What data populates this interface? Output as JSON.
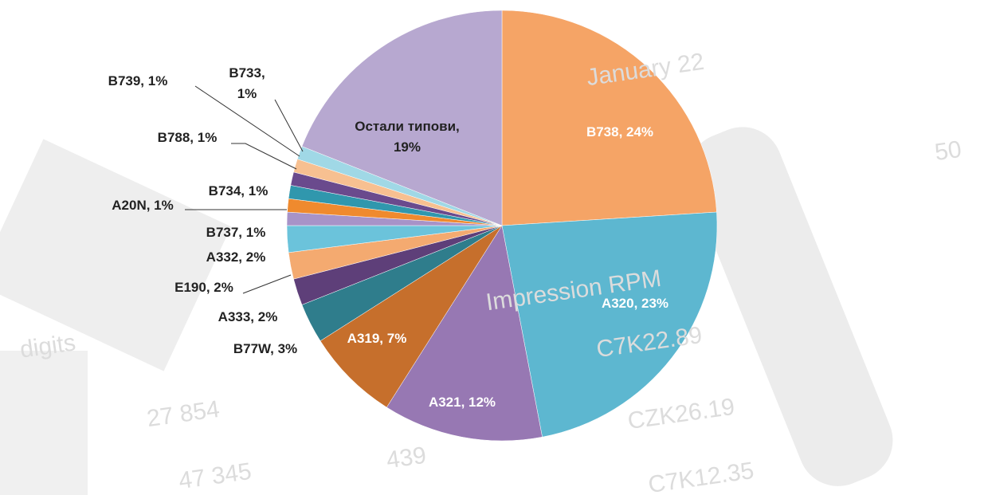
{
  "chart_data": {
    "type": "pie",
    "value_labels": [
      "B738, 24%",
      "A320, 23%",
      "A321, 12%",
      "A319, 7%",
      "B77W, 3%",
      "A333, 2%",
      "E190, 2%",
      "A332, 2%",
      "B737, 1%",
      "A20N, 1%",
      "B734, 1%",
      "B788, 1%",
      "B739, 1%",
      "B733,\n1%",
      "Остали типови,\n19%"
    ],
    "values": [
      24,
      23,
      12,
      7,
      3,
      2,
      2,
      2,
      1,
      1,
      1,
      1,
      1,
      1,
      19
    ],
    "colors": [
      "#f5a466",
      "#5db7d0",
      "#9778b3",
      "#c66f2c",
      "#2f7d8c",
      "#5e3f79",
      "#f4aa70",
      "#6bc3db",
      "#a793c8",
      "#ef8a2e",
      "#3097ad",
      "#6a4a8d",
      "#f7c091",
      "#a0d8e6",
      "#b7a8d0"
    ]
  },
  "background_texts": [
    "January 22",
    "Impression RPM",
    "C7K22.89",
    "CZK26.19",
    "C7K12.35",
    "digits",
    "27 854",
    "47 345",
    "439",
    "50"
  ]
}
